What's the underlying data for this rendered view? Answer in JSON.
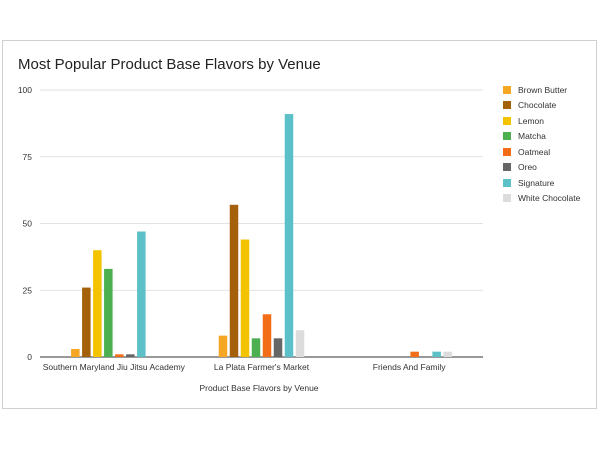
{
  "chart_data": {
    "type": "bar",
    "title": "Most Popular Product Base Flavors by Venue",
    "xlabel": "Product Base Flavors by Venue",
    "ylabel": "",
    "ylim": [
      0,
      100
    ],
    "yticks": [
      "0",
      "25",
      "50",
      "75",
      "100"
    ],
    "grid": true,
    "legend_position": "right",
    "categories": [
      "Southern Maryland Jiu Jitsu Academy",
      "La Plata Farmer's Market",
      "Friends And Family"
    ],
    "series": [
      {
        "name": "Brown Butter",
        "color": "#f5a623",
        "values": [
          3,
          8,
          0
        ]
      },
      {
        "name": "Chocolate",
        "color": "#a4600b",
        "values": [
          26,
          57,
          0
        ]
      },
      {
        "name": "Lemon",
        "color": "#f3c300",
        "values": [
          40,
          44,
          0
        ]
      },
      {
        "name": "Matcha",
        "color": "#4caf50",
        "values": [
          33,
          7,
          0
        ]
      },
      {
        "name": "Oatmeal",
        "color": "#f36c16",
        "values": [
          1,
          16,
          2
        ]
      },
      {
        "name": "Oreo",
        "color": "#666666",
        "values": [
          1,
          7,
          0
        ]
      },
      {
        "name": "Signature",
        "color": "#5bc0c8",
        "values": [
          47,
          91,
          2
        ]
      },
      {
        "name": "White Chocolate",
        "color": "#dcdcdc",
        "values": [
          0,
          10,
          2
        ]
      }
    ]
  }
}
